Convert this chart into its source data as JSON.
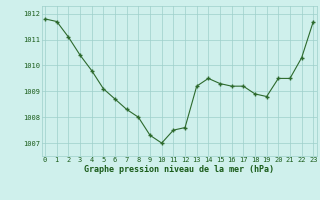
{
  "hours": [
    0,
    1,
    2,
    3,
    4,
    5,
    6,
    7,
    8,
    9,
    10,
    11,
    12,
    13,
    14,
    15,
    16,
    17,
    18,
    19,
    20,
    21,
    22,
    23
  ],
  "pressure": [
    1011.8,
    1011.7,
    1011.1,
    1010.4,
    1009.8,
    1009.1,
    1008.7,
    1008.3,
    1008.0,
    1007.3,
    1007.0,
    1007.5,
    1007.6,
    1009.2,
    1009.5,
    1009.3,
    1009.2,
    1009.2,
    1008.9,
    1008.8,
    1009.5,
    1009.5,
    1010.3,
    1011.7
  ],
  "line_color": "#2d6a2d",
  "marker_color": "#2d6a2d",
  "bg_color": "#cff0ec",
  "grid_color": "#9ecfca",
  "xlabel": "Graphe pression niveau de la mer (hPa)",
  "xlabel_color": "#1a5c1a",
  "tick_color": "#1a5c1a",
  "ylim": [
    1006.5,
    1012.3
  ],
  "yticks": [
    1007,
    1008,
    1009,
    1010,
    1011,
    1012
  ],
  "xticks": [
    0,
    1,
    2,
    3,
    4,
    5,
    6,
    7,
    8,
    9,
    10,
    11,
    12,
    13,
    14,
    15,
    16,
    17,
    18,
    19,
    20,
    21,
    22,
    23
  ]
}
